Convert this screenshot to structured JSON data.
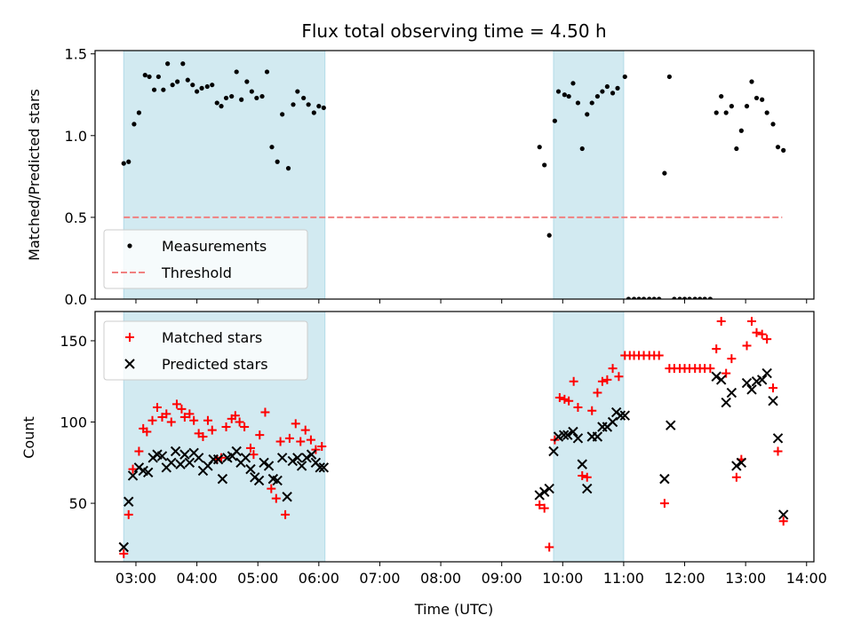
{
  "chart_data": [
    {
      "type": "scatter",
      "title": "Flux total observing time = 4.50 h",
      "ylabel": "Matched/Predicted stars",
      "xlabel": "",
      "xlim": [
        2.33,
        14.12
      ],
      "ylim": [
        0,
        1.52
      ],
      "y_ticks": [
        0.0,
        0.5,
        1.0,
        1.5
      ],
      "y_tick_labels": [
        "0.0",
        "0.5",
        "1.0",
        "1.5"
      ],
      "shaded_intervals": [
        [
          2.8,
          6.1
        ],
        [
          9.85,
          11.0
        ]
      ],
      "shade_color": "#add8e6",
      "legend_position": "lower-left",
      "series": [
        {
          "name": "Measurements",
          "marker": "dot",
          "color": "#000000",
          "points": [
            [
              2.8,
              0.83
            ],
            [
              2.88,
              0.84
            ],
            [
              2.97,
              1.07
            ],
            [
              3.05,
              1.14
            ],
            [
              3.15,
              1.37
            ],
            [
              3.22,
              1.36
            ],
            [
              3.3,
              1.28
            ],
            [
              3.37,
              1.36
            ],
            [
              3.45,
              1.28
            ],
            [
              3.52,
              1.44
            ],
            [
              3.6,
              1.31
            ],
            [
              3.68,
              1.33
            ],
            [
              3.77,
              1.44
            ],
            [
              3.85,
              1.34
            ],
            [
              3.93,
              1.31
            ],
            [
              4.0,
              1.27
            ],
            [
              4.08,
              1.29
            ],
            [
              4.17,
              1.3
            ],
            [
              4.25,
              1.31
            ],
            [
              4.33,
              1.2
            ],
            [
              4.4,
              1.18
            ],
            [
              4.48,
              1.23
            ],
            [
              4.57,
              1.24
            ],
            [
              4.65,
              1.39
            ],
            [
              4.73,
              1.22
            ],
            [
              4.82,
              1.33
            ],
            [
              4.9,
              1.27
            ],
            [
              4.98,
              1.23
            ],
            [
              5.07,
              1.24
            ],
            [
              5.15,
              1.39
            ],
            [
              5.23,
              0.93
            ],
            [
              5.32,
              0.84
            ],
            [
              5.4,
              1.13
            ],
            [
              5.5,
              0.8
            ],
            [
              5.58,
              1.19
            ],
            [
              5.65,
              1.27
            ],
            [
              5.75,
              1.23
            ],
            [
              5.83,
              1.19
            ],
            [
              5.92,
              1.14
            ],
            [
              6.0,
              1.18
            ],
            [
              6.08,
              1.17
            ],
            [
              9.62,
              0.93
            ],
            [
              9.7,
              0.82
            ],
            [
              9.78,
              0.39
            ],
            [
              9.87,
              1.09
            ],
            [
              9.93,
              1.27
            ],
            [
              10.03,
              1.25
            ],
            [
              10.1,
              1.24
            ],
            [
              10.17,
              1.32
            ],
            [
              10.25,
              1.2
            ],
            [
              10.32,
              0.92
            ],
            [
              10.4,
              1.13
            ],
            [
              10.48,
              1.2
            ],
            [
              10.57,
              1.24
            ],
            [
              10.65,
              1.27
            ],
            [
              10.73,
              1.3
            ],
            [
              10.82,
              1.26
            ],
            [
              10.9,
              1.29
            ],
            [
              11.02,
              1.36
            ],
            [
              11.08,
              0.0
            ],
            [
              11.17,
              0.0
            ],
            [
              11.25,
              0.0
            ],
            [
              11.33,
              0.0
            ],
            [
              11.42,
              0.0
            ],
            [
              11.5,
              0.0
            ],
            [
              11.58,
              0.0
            ],
            [
              11.67,
              0.77
            ],
            [
              11.75,
              1.36
            ],
            [
              11.83,
              0.0
            ],
            [
              11.92,
              0.0
            ],
            [
              12.0,
              0.0
            ],
            [
              12.08,
              0.0
            ],
            [
              12.17,
              0.0
            ],
            [
              12.25,
              0.0
            ],
            [
              12.33,
              0.0
            ],
            [
              12.42,
              0.0
            ],
            [
              12.52,
              1.14
            ],
            [
              12.6,
              1.24
            ],
            [
              12.68,
              1.14
            ],
            [
              12.77,
              1.18
            ],
            [
              12.85,
              0.92
            ],
            [
              12.93,
              1.03
            ],
            [
              13.02,
              1.18
            ],
            [
              13.1,
              1.33
            ],
            [
              13.18,
              1.23
            ],
            [
              13.27,
              1.22
            ],
            [
              13.35,
              1.14
            ],
            [
              13.45,
              1.07
            ],
            [
              13.53,
              0.93
            ],
            [
              13.62,
              0.91
            ]
          ]
        },
        {
          "name": "Threshold",
          "marker": "dashed-line",
          "color": "#f08080",
          "points": [
            [
              2.8,
              0.5
            ],
            [
              13.6,
              0.5
            ]
          ]
        }
      ]
    },
    {
      "type": "scatter",
      "title": "",
      "xlabel": "Time (UTC)",
      "ylabel": "Count",
      "xlim": [
        2.33,
        14.12
      ],
      "ylim": [
        14,
        168
      ],
      "x_ticks": [
        3,
        4,
        5,
        6,
        7,
        8,
        9,
        10,
        11,
        12,
        13,
        14
      ],
      "x_tick_labels": [
        "03:00",
        "04:00",
        "05:00",
        "06:00",
        "07:00",
        "08:00",
        "09:00",
        "10:00",
        "11:00",
        "12:00",
        "13:00",
        "14:00"
      ],
      "y_ticks": [
        50,
        100,
        150
      ],
      "y_tick_labels": [
        "50",
        "100",
        "150"
      ],
      "shaded_intervals": [
        [
          2.8,
          6.1
        ],
        [
          9.85,
          11.0
        ]
      ],
      "shade_color": "#add8e6",
      "legend_position": "top-left",
      "series": [
        {
          "name": "Matched stars",
          "marker": "plus",
          "color": "#ff0000",
          "points": [
            [
              2.8,
              19
            ],
            [
              2.88,
              43
            ],
            [
              2.95,
              71
            ],
            [
              3.05,
              82
            ],
            [
              3.12,
              96
            ],
            [
              3.18,
              94
            ],
            [
              3.27,
              101
            ],
            [
              3.35,
              109
            ],
            [
              3.43,
              103
            ],
            [
              3.5,
              105
            ],
            [
              3.58,
              100
            ],
            [
              3.67,
              111
            ],
            [
              3.75,
              108
            ],
            [
              3.8,
              103
            ],
            [
              3.88,
              105
            ],
            [
              3.95,
              101
            ],
            [
              4.03,
              93
            ],
            [
              4.1,
              91
            ],
            [
              4.18,
              101
            ],
            [
              4.25,
              95
            ],
            [
              4.33,
              77
            ],
            [
              4.4,
              78
            ],
            [
              4.48,
              97
            ],
            [
              4.57,
              102
            ],
            [
              4.63,
              104
            ],
            [
              4.7,
              100
            ],
            [
              4.78,
              97
            ],
            [
              4.88,
              84
            ],
            [
              4.93,
              80
            ],
            [
              5.03,
              92
            ],
            [
              5.12,
              106
            ],
            [
              5.22,
              59
            ],
            [
              5.3,
              53
            ],
            [
              5.37,
              88
            ],
            [
              5.45,
              43
            ],
            [
              5.52,
              90
            ],
            [
              5.62,
              99
            ],
            [
              5.7,
              88
            ],
            [
              5.78,
              95
            ],
            [
              5.87,
              89
            ],
            [
              5.95,
              83
            ],
            [
              6.05,
              85
            ],
            [
              9.62,
              49
            ],
            [
              9.7,
              47
            ],
            [
              9.78,
              23
            ],
            [
              9.87,
              89
            ],
            [
              9.95,
              115
            ],
            [
              10.03,
              114
            ],
            [
              10.1,
              113
            ],
            [
              10.18,
              125
            ],
            [
              10.25,
              109
            ],
            [
              10.32,
              67
            ],
            [
              10.4,
              66
            ],
            [
              10.48,
              107
            ],
            [
              10.57,
              118
            ],
            [
              10.65,
              125
            ],
            [
              10.73,
              126
            ],
            [
              10.82,
              133
            ],
            [
              10.92,
              128
            ],
            [
              11.02,
              141
            ],
            [
              11.1,
              141
            ],
            [
              11.17,
              141
            ],
            [
              11.25,
              141
            ],
            [
              11.33,
              141
            ],
            [
              11.42,
              141
            ],
            [
              11.5,
              141
            ],
            [
              11.58,
              141
            ],
            [
              11.67,
              50
            ],
            [
              11.75,
              133
            ],
            [
              11.83,
              133
            ],
            [
              11.92,
              133
            ],
            [
              12.0,
              133
            ],
            [
              12.08,
              133
            ],
            [
              12.17,
              133
            ],
            [
              12.25,
              133
            ],
            [
              12.33,
              133
            ],
            [
              12.42,
              133
            ],
            [
              12.52,
              145
            ],
            [
              12.6,
              162
            ],
            [
              12.68,
              130
            ],
            [
              12.77,
              139
            ],
            [
              12.85,
              66
            ],
            [
              12.93,
              77
            ],
            [
              13.02,
              147
            ],
            [
              13.1,
              162
            ],
            [
              13.18,
              155
            ],
            [
              13.27,
              154
            ],
            [
              13.35,
              151
            ],
            [
              13.45,
              121
            ],
            [
              13.53,
              82
            ],
            [
              13.62,
              39
            ]
          ]
        },
        {
          "name": "Predicted stars",
          "marker": "x",
          "color": "#000000",
          "points": [
            [
              2.8,
              23
            ],
            [
              2.88,
              51
            ],
            [
              2.95,
              67
            ],
            [
              3.05,
              72
            ],
            [
              3.12,
              70
            ],
            [
              3.2,
              69
            ],
            [
              3.28,
              78
            ],
            [
              3.35,
              80
            ],
            [
              3.43,
              79
            ],
            [
              3.5,
              72
            ],
            [
              3.58,
              75
            ],
            [
              3.65,
              82
            ],
            [
              3.73,
              74
            ],
            [
              3.8,
              80
            ],
            [
              3.88,
              75
            ],
            [
              3.95,
              81
            ],
            [
              4.03,
              78
            ],
            [
              4.1,
              70
            ],
            [
              4.18,
              73
            ],
            [
              4.27,
              77
            ],
            [
              4.35,
              77
            ],
            [
              4.42,
              65
            ],
            [
              4.5,
              78
            ],
            [
              4.58,
              79
            ],
            [
              4.65,
              82
            ],
            [
              4.72,
              75
            ],
            [
              4.8,
              78
            ],
            [
              4.88,
              71
            ],
            [
              4.95,
              66
            ],
            [
              5.02,
              64
            ],
            [
              5.1,
              75
            ],
            [
              5.18,
              73
            ],
            [
              5.25,
              65
            ],
            [
              5.32,
              64
            ],
            [
              5.4,
              78
            ],
            [
              5.48,
              54
            ],
            [
              5.57,
              76
            ],
            [
              5.65,
              78
            ],
            [
              5.72,
              73
            ],
            [
              5.8,
              78
            ],
            [
              5.88,
              80
            ],
            [
              5.95,
              75
            ],
            [
              6.02,
              72
            ],
            [
              6.08,
              72
            ],
            [
              9.62,
              55
            ],
            [
              9.7,
              57
            ],
            [
              9.78,
              59
            ],
            [
              9.85,
              82
            ],
            [
              9.93,
              91
            ],
            [
              10.02,
              92
            ],
            [
              10.08,
              92
            ],
            [
              10.17,
              94
            ],
            [
              10.25,
              90
            ],
            [
              10.32,
              74
            ],
            [
              10.4,
              59
            ],
            [
              10.48,
              91
            ],
            [
              10.57,
              91
            ],
            [
              10.65,
              97
            ],
            [
              10.73,
              97
            ],
            [
              10.82,
              100
            ],
            [
              10.88,
              106
            ],
            [
              10.95,
              104
            ],
            [
              11.02,
              104
            ],
            [
              11.67,
              65
            ],
            [
              11.77,
              98
            ],
            [
              12.52,
              128
            ],
            [
              12.6,
              126
            ],
            [
              12.68,
              112
            ],
            [
              12.77,
              118
            ],
            [
              12.85,
              73
            ],
            [
              12.93,
              75
            ],
            [
              13.02,
              124
            ],
            [
              13.1,
              120
            ],
            [
              13.18,
              125
            ],
            [
              13.27,
              126
            ],
            [
              13.35,
              130
            ],
            [
              13.45,
              113
            ],
            [
              13.53,
              90
            ],
            [
              13.62,
              43
            ]
          ]
        }
      ]
    }
  ]
}
